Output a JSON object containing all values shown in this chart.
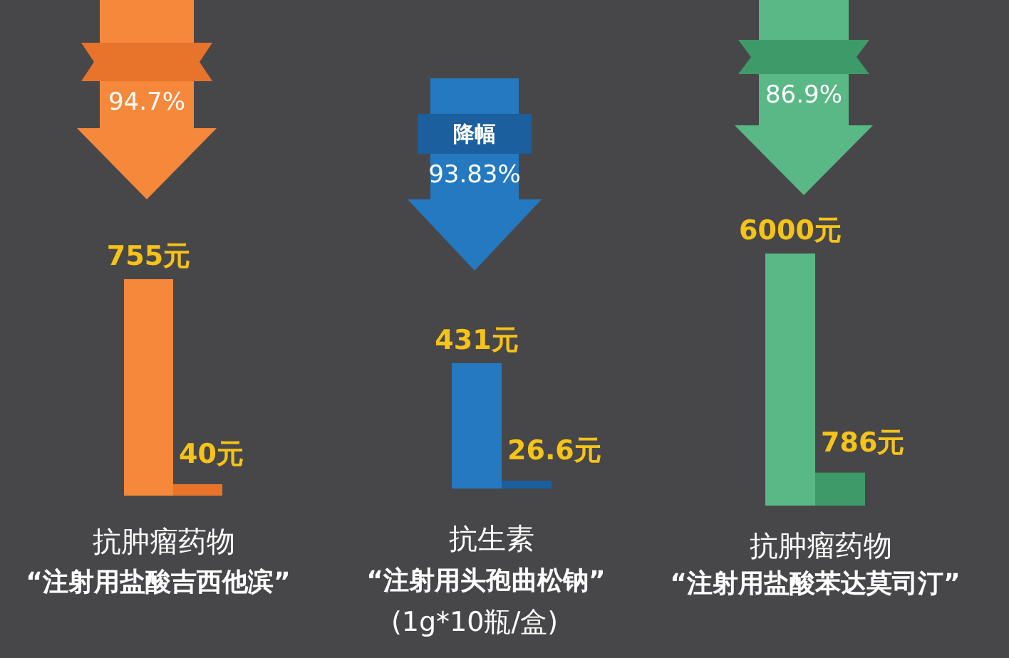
{
  "chart_data": [
    {
      "type": "bar",
      "title": "抗肿瘤药物",
      "subtitle": "“注射用盐酸吉西他滨”",
      "categories": [
        null,
        null
      ],
      "values": [
        755,
        40
      ],
      "value_labels": [
        "755元",
        "40元"
      ],
      "colors": [
        "#f5883a",
        "#e8742c"
      ],
      "annotations": [
        "94.7%"
      ]
    },
    {
      "type": "bar",
      "title": "抗生素",
      "subtitle": "“注射用头孢曲松钠”",
      "categories": [
        null,
        null
      ],
      "values": [
        431,
        26.6
      ],
      "value_labels": [
        "431元",
        "26.6元"
      ],
      "colors": [
        "#2479c0",
        "#1b5f9e"
      ],
      "annotations": [
        "降幅",
        "93.83%",
        "(1g*10瓶/盒)"
      ]
    },
    {
      "type": "bar",
      "title": "抗肿瘤药物",
      "subtitle": "“注射用盐酸苯达莫司汀”",
      "categories": [
        null,
        null
      ],
      "values": [
        6000,
        786
      ],
      "value_labels": [
        "6000元",
        "786元"
      ],
      "colors": [
        "#5ab887",
        "#3f9a6a"
      ],
      "annotations": [
        "86.9%"
      ]
    }
  ]
}
